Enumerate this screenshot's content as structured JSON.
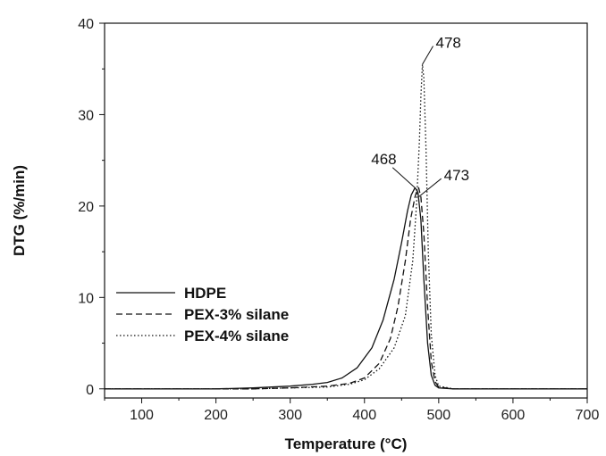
{
  "chart_data": {
    "type": "line",
    "xlabel": "Temperature (°C)",
    "ylabel": "DTG (%/min)",
    "xlim": [
      50,
      700
    ],
    "ylim": [
      -1,
      40
    ],
    "x_ticks": [
      100,
      200,
      300,
      400,
      500,
      600,
      700
    ],
    "y_ticks": [
      0,
      10,
      20,
      30,
      40
    ],
    "legend_position": "lower-left",
    "grid": false,
    "series": [
      {
        "name": "HDPE",
        "style": "solid",
        "color": "#111111",
        "x": [
          50,
          100,
          150,
          200,
          250,
          300,
          330,
          350,
          370,
          390,
          410,
          425,
          440,
          450,
          458,
          463,
          468,
          472,
          476,
          480,
          485,
          490,
          495,
          500,
          520,
          550,
          600,
          650,
          700
        ],
        "y": [
          0,
          0,
          0,
          0,
          0.1,
          0.3,
          0.5,
          0.7,
          1.2,
          2.3,
          4.5,
          7.5,
          12,
          16,
          19.5,
          21.2,
          22,
          21.5,
          18.5,
          12,
          5,
          1.5,
          0.4,
          0.1,
          0,
          0,
          0,
          0,
          0
        ]
      },
      {
        "name": "PEX-3% silane",
        "style": "dashed",
        "color": "#111111",
        "x": [
          50,
          100,
          150,
          200,
          250,
          300,
          350,
          380,
          400,
          420,
          435,
          445,
          455,
          462,
          468,
          471,
          473,
          476,
          480,
          485,
          490,
          495,
          500,
          520,
          550,
          600,
          650,
          700
        ],
        "y": [
          0,
          0,
          0,
          0,
          0,
          0.1,
          0.3,
          0.6,
          1.2,
          2.8,
          5.5,
          9,
          14,
          18.5,
          21,
          21.8,
          22,
          21,
          17,
          9,
          3,
          0.8,
          0.2,
          0,
          0,
          0,
          0,
          0
        ]
      },
      {
        "name": "PEX-4% silane",
        "style": "dotted",
        "color": "#111111",
        "x": [
          50,
          100,
          150,
          200,
          250,
          300,
          350,
          380,
          400,
          420,
          440,
          455,
          465,
          470,
          474,
          476,
          478,
          480,
          483,
          486,
          490,
          495,
          500,
          520,
          550,
          600,
          650,
          700
        ],
        "y": [
          0,
          0,
          0,
          0,
          0,
          0.1,
          0.2,
          0.5,
          1,
          2.2,
          4.5,
          8,
          14,
          20,
          27,
          32,
          35.5,
          34,
          26,
          15,
          6,
          1.5,
          0.3,
          0,
          0,
          0,
          0,
          0
        ]
      }
    ],
    "annotations": [
      {
        "text": "478",
        "x": 478,
        "y": 35.5,
        "label_x": 496,
        "label_y": 37.3
      },
      {
        "text": "468",
        "x": 468,
        "y": 22,
        "label_x": 409,
        "label_y": 24.6
      },
      {
        "text": "473",
        "x": 473,
        "y": 21,
        "label_x": 507,
        "label_y": 22.8
      }
    ]
  }
}
